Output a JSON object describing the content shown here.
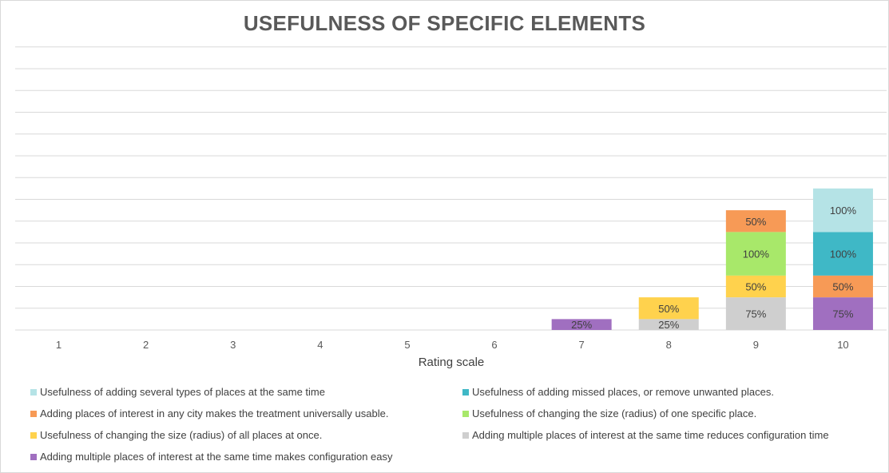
{
  "chart_data": {
    "type": "bar",
    "stacked": true,
    "title": "USEFULNESS OF SPECIFIC ELEMENTS",
    "xlabel": "Rating scale",
    "ylabel": "",
    "categories": [
      "1",
      "2",
      "3",
      "4",
      "5",
      "6",
      "7",
      "8",
      "9",
      "10"
    ],
    "grid": true,
    "legend_position": "bottom",
    "series": [
      {
        "name": "Adding multiple places of interest at the same time makes configuration easy",
        "color": "#a06fc0",
        "values": [
          0,
          0,
          0,
          0,
          0,
          0,
          25,
          0,
          0,
          75
        ]
      },
      {
        "name": "Adding multiple places of interest at the same time reduces configuration time",
        "color": "#cfcfcf",
        "values": [
          0,
          0,
          0,
          0,
          0,
          0,
          0,
          25,
          75,
          0
        ]
      },
      {
        "name": "Usefulness of changing the size (radius) of all places at once.",
        "color": "#ffd24d",
        "values": [
          0,
          0,
          0,
          0,
          0,
          0,
          0,
          50,
          50,
          0
        ]
      },
      {
        "name": "Adding places of interest in any city makes the treatment universally usable.",
        "color": "#f79a56",
        "values": [
          0,
          0,
          0,
          0,
          0,
          0,
          0,
          0,
          0,
          50
        ]
      },
      {
        "name": "Usefulness of changing the size (radius) of one specific place.",
        "color": "#a8e86a",
        "values": [
          0,
          0,
          0,
          0,
          0,
          0,
          0,
          0,
          100,
          0
        ]
      },
      {
        "name": "Usefulness of adding missed places, or remove unwanted places.",
        "color": "#3fb8c6",
        "values": [
          0,
          0,
          0,
          0,
          0,
          0,
          0,
          0,
          0,
          100
        ]
      },
      {
        "name": "Adding places of interest in any city makes the treatment universally usable.",
        "color": "#f79a56",
        "values": [
          0,
          0,
          0,
          0,
          0,
          0,
          0,
          0,
          50,
          0
        ]
      },
      {
        "name": "Usefulness of adding several types of places at the same time",
        "color": "#b5e3e6",
        "values": [
          0,
          0,
          0,
          0,
          0,
          0,
          0,
          0,
          0,
          100
        ]
      }
    ],
    "legend": [
      {
        "label": "Usefulness of adding several types of places at the same time",
        "color": "#b5e3e6"
      },
      {
        "label": "Usefulness of adding missed places, or remove unwanted places.",
        "color": "#3fb8c6"
      },
      {
        "label": "Adding places of interest in any city makes the treatment universally usable.",
        "color": "#f79a56"
      },
      {
        "label": "Usefulness of changing the size (radius) of one specific place.",
        "color": "#a8e86a"
      },
      {
        "label": "Usefulness of changing the size (radius) of all places at once.",
        "color": "#ffd24d"
      },
      {
        "label": "Adding multiple places of interest at the same time reduces configuration time",
        "color": "#cfcfcf"
      },
      {
        "label": "Adding multiple places of interest at the same time makes configuration easy",
        "color": "#a06fc0"
      }
    ]
  }
}
